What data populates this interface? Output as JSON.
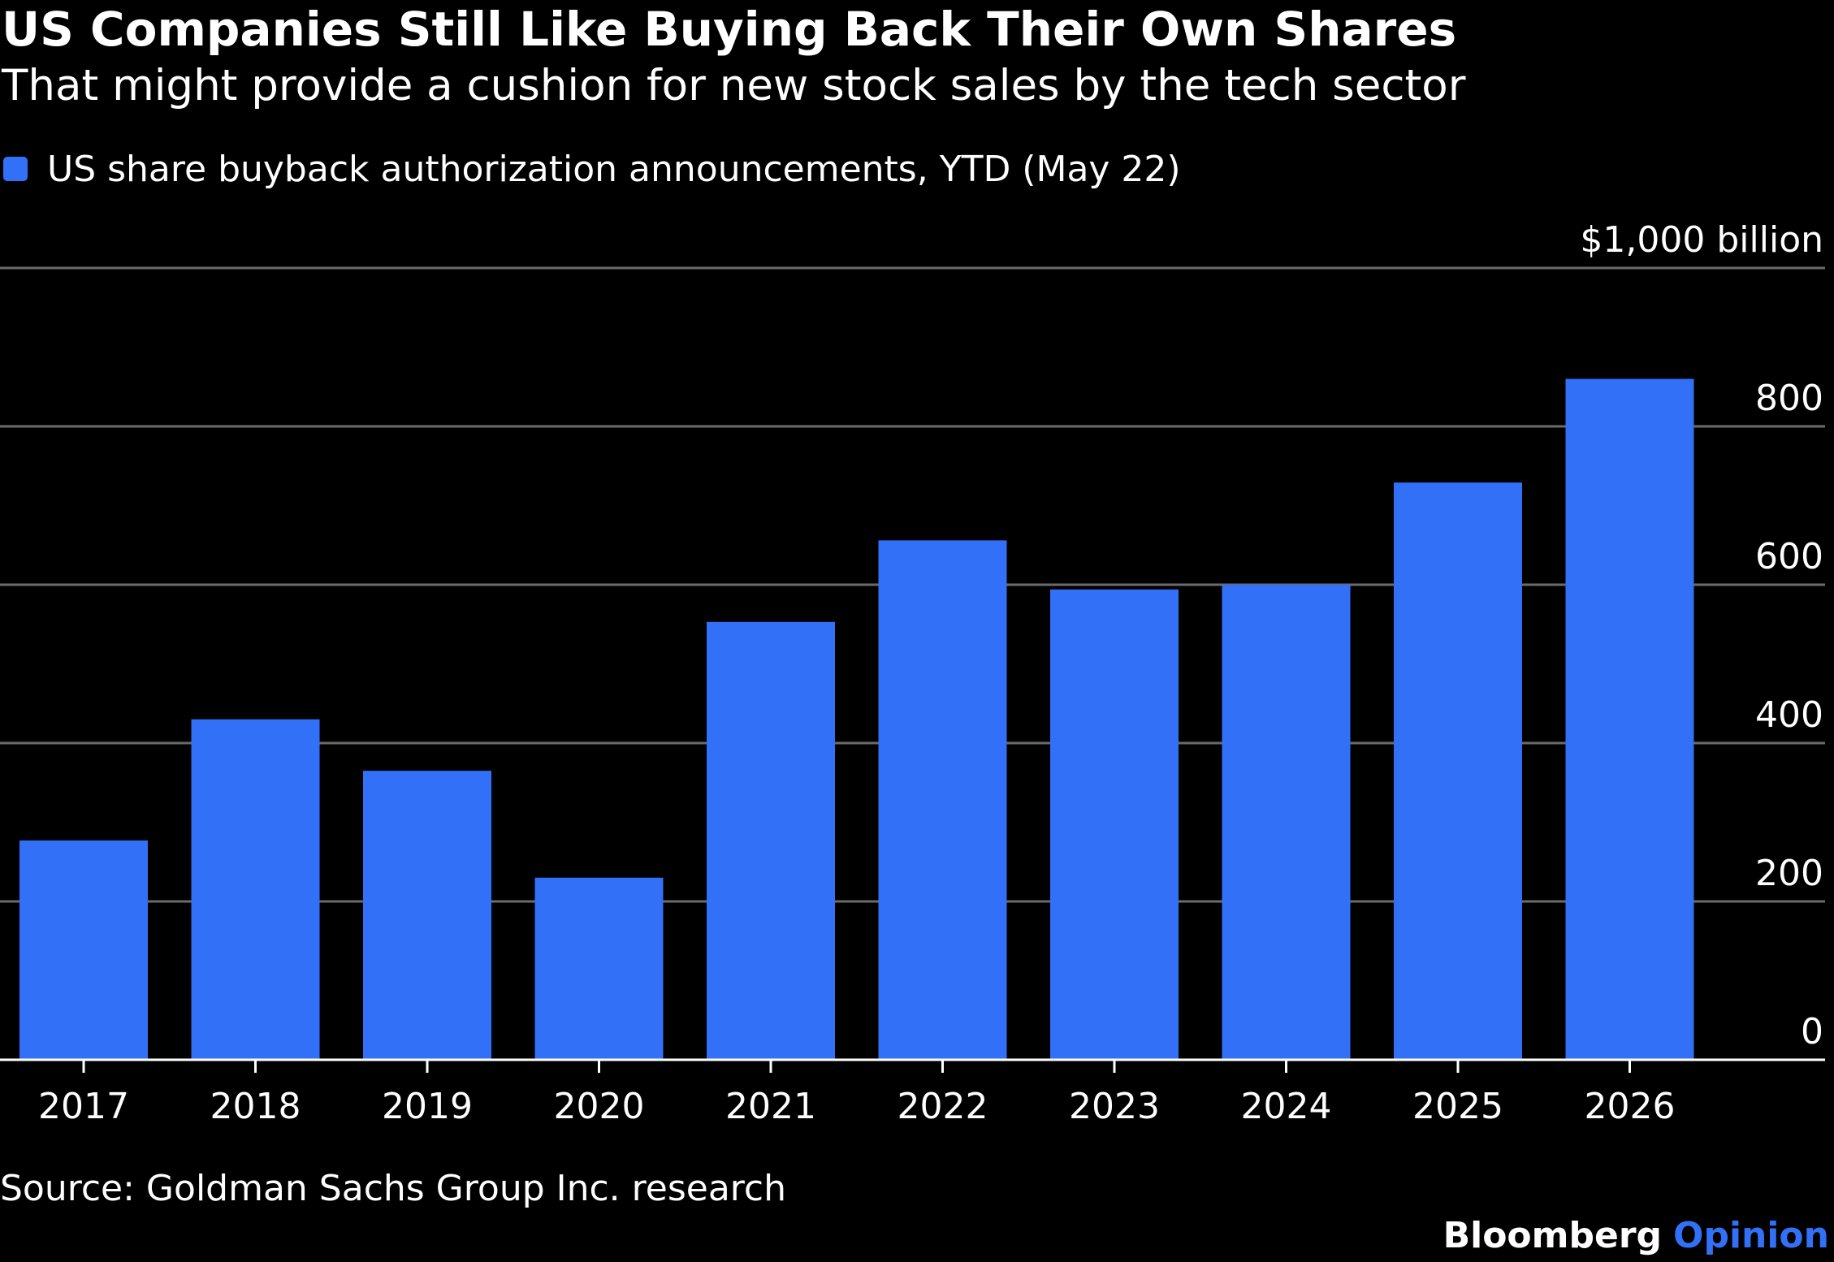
{
  "title": "US Companies Still Like Buying Back Their Own Shares",
  "subtitle": "That might provide a cushion for new stock sales by the tech sector",
  "legend": {
    "label": "US share buyback authorization announcements, YTD (May 22)"
  },
  "source": "Source: Goldman Sachs Group Inc. research",
  "brand": {
    "name": "Bloomberg",
    "suffix": "Opinion"
  },
  "colors": {
    "background": "#000000",
    "bar": "#3270F7",
    "grid": "#6b6b6b",
    "axis": "#ffffff",
    "text": "#ffffff",
    "brand_accent": "#3270F7"
  },
  "chart_data": {
    "type": "bar",
    "categories": [
      "2017",
      "2018",
      "2019",
      "2020",
      "2021",
      "2022",
      "2023",
      "2024",
      "2025",
      "2026"
    ],
    "series": [
      {
        "name": "US share buyback authorization announcements, YTD (May 22)",
        "values": [
          277,
          430,
          365,
          230,
          553,
          656,
          594,
          600,
          729,
          860
        ]
      }
    ],
    "ylim": [
      0,
      1000
    ],
    "yticks": [
      0,
      200,
      400,
      600,
      800,
      1000
    ],
    "ytick_labels": [
      "0",
      "200",
      "400",
      "600",
      "800",
      "$1,000 billion"
    ],
    "y_axis_position": "right",
    "grid": true,
    "legend_position": "top-left"
  }
}
